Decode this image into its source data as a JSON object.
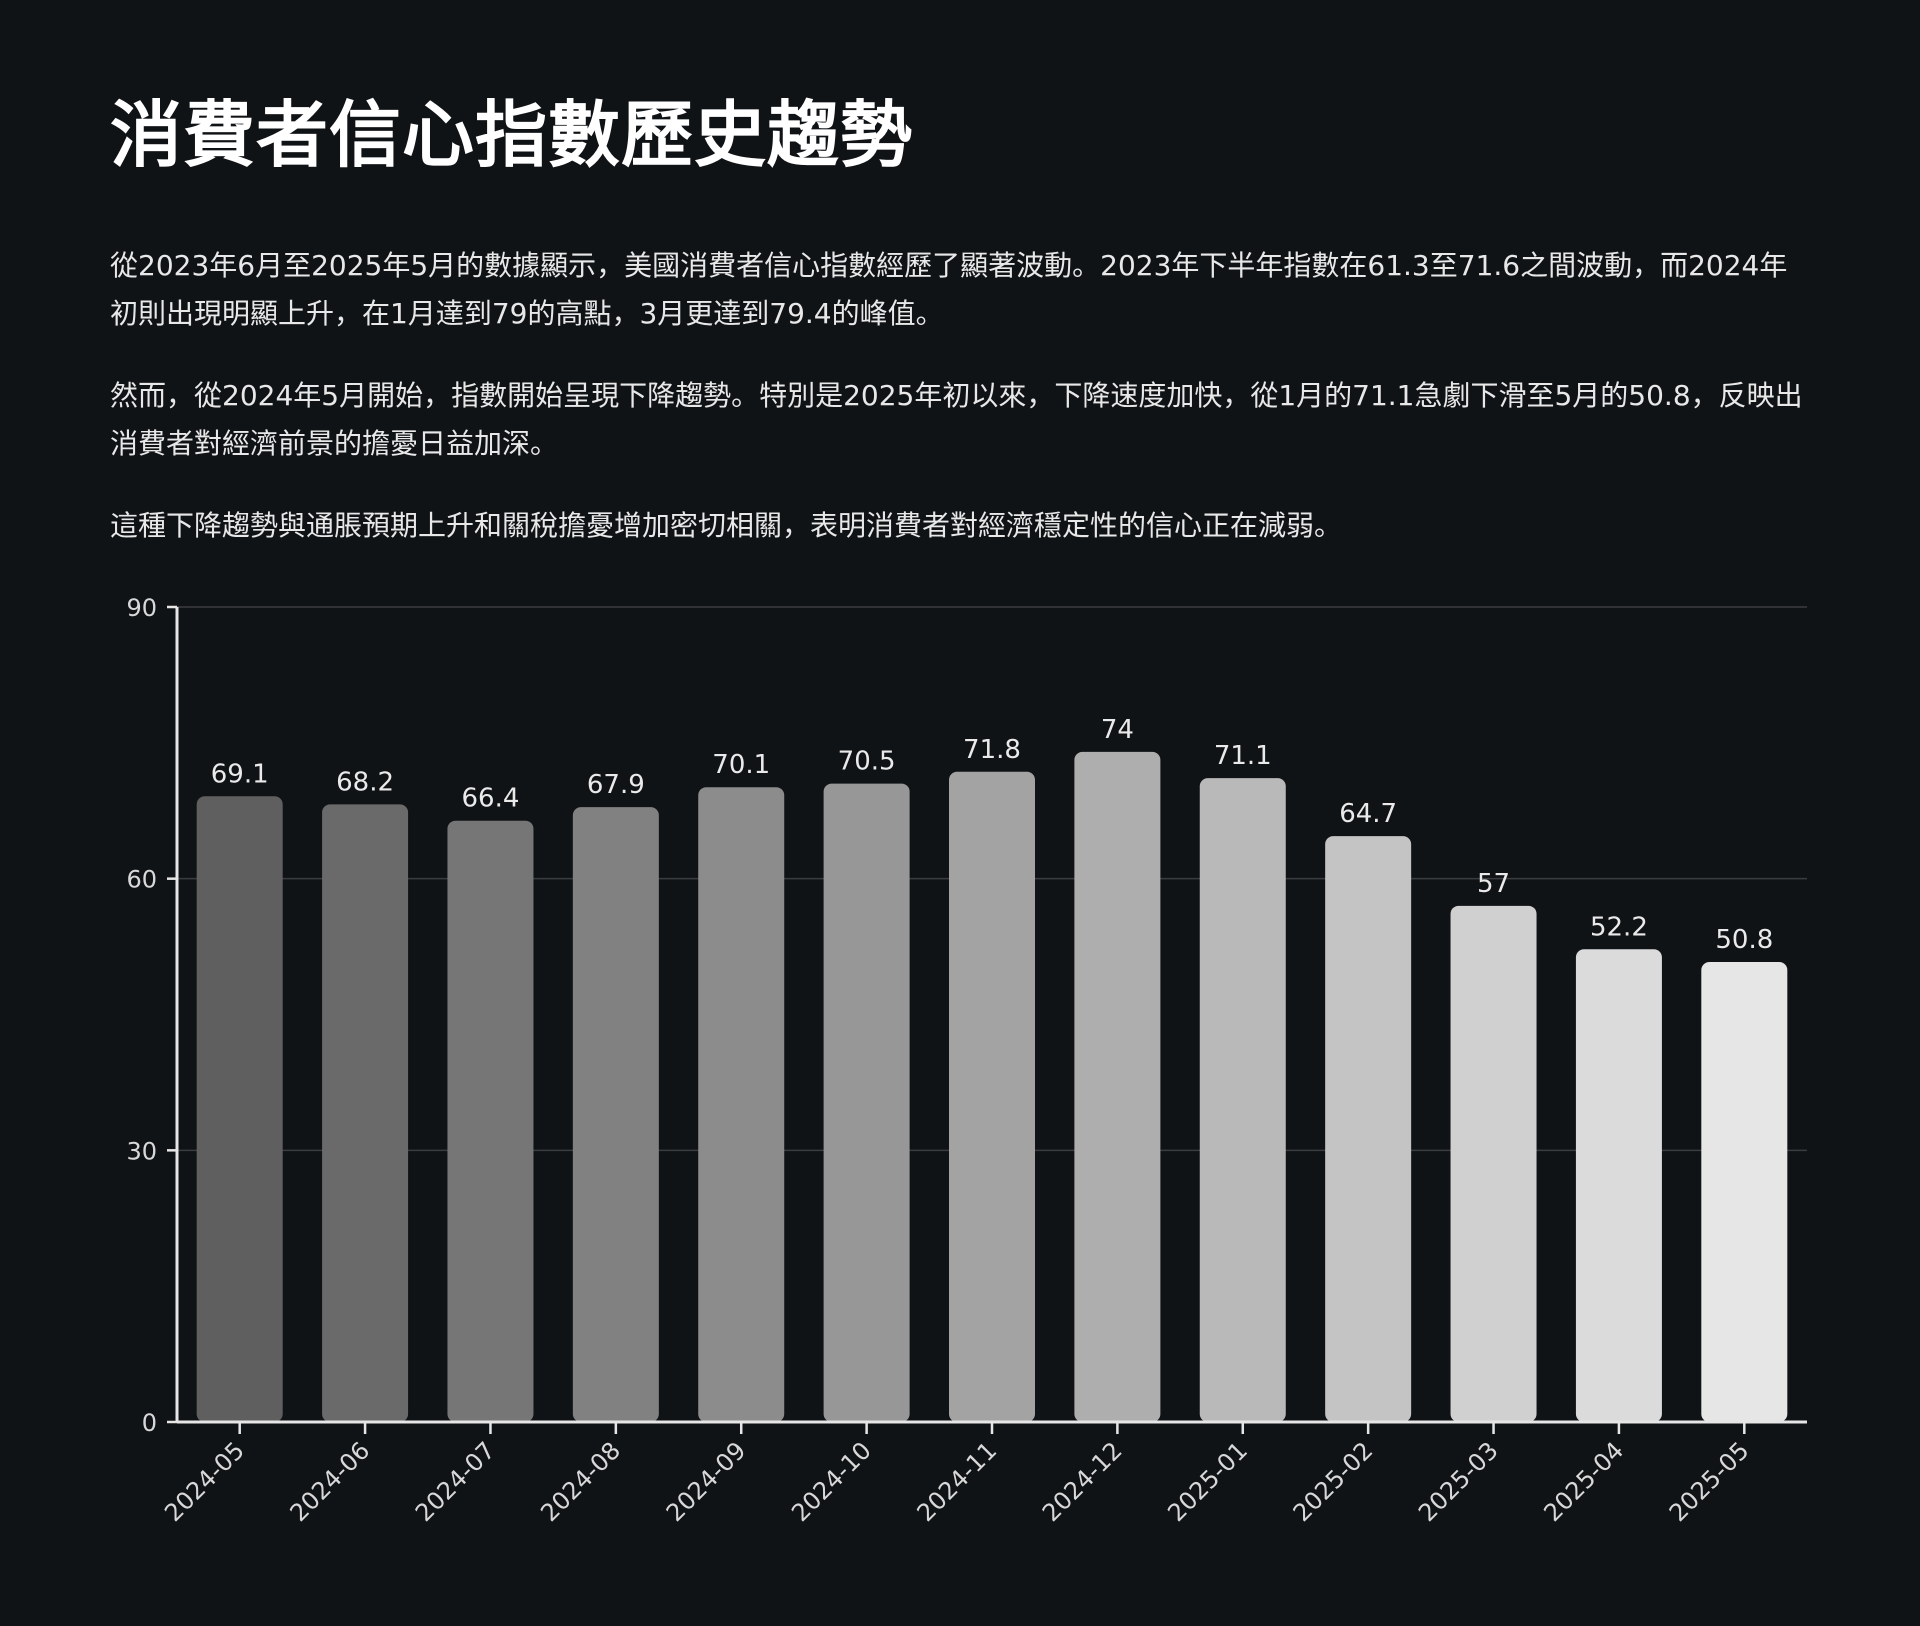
{
  "page": {
    "title": "消費者信心指數歷史趨勢",
    "paragraphs": [
      "從2023年6月至2025年5月的數據顯示，美國消費者信心指數經歷了顯著波動。2023年下半年指數在61.3至71.6之間波動，而2024年初則出現明顯上升，在1月達到79的高點，3月更達到79.4的峰值。",
      "然而，從2024年5月開始，指數開始呈現下降趨勢。特別是2025年初以來，下降速度加快，從1月的71.1急劇下滑至5月的50.8，反映出消費者對經濟前景的擔憂日益加深。",
      "這種下降趨勢與通脹預期上升和關稅擔憂增加密切相關，表明消費者對經濟穩定性的信心正在減弱。"
    ]
  },
  "colors": {
    "background": "#101316",
    "axis": "#e6e6e6",
    "grid": "#3a3d40",
    "bar_start": "#5f5f5f",
    "bar_end": "#e6e6e6"
  },
  "chart_data": {
    "type": "bar",
    "title": "",
    "xlabel": "",
    "ylabel": "",
    "categories": [
      "2024-05",
      "2024-06",
      "2024-07",
      "2024-08",
      "2024-09",
      "2024-10",
      "2024-11",
      "2024-12",
      "2025-01",
      "2025-02",
      "2025-03",
      "2025-04",
      "2025-05"
    ],
    "values": [
      69.1,
      68.2,
      66.4,
      67.9,
      70.1,
      70.5,
      71.8,
      74,
      71.1,
      64.7,
      57,
      52.2,
      50.8
    ],
    "ylim": [
      0,
      90
    ],
    "yticks": [
      0,
      30,
      60,
      90
    ],
    "grid": true,
    "data_labels": true
  }
}
